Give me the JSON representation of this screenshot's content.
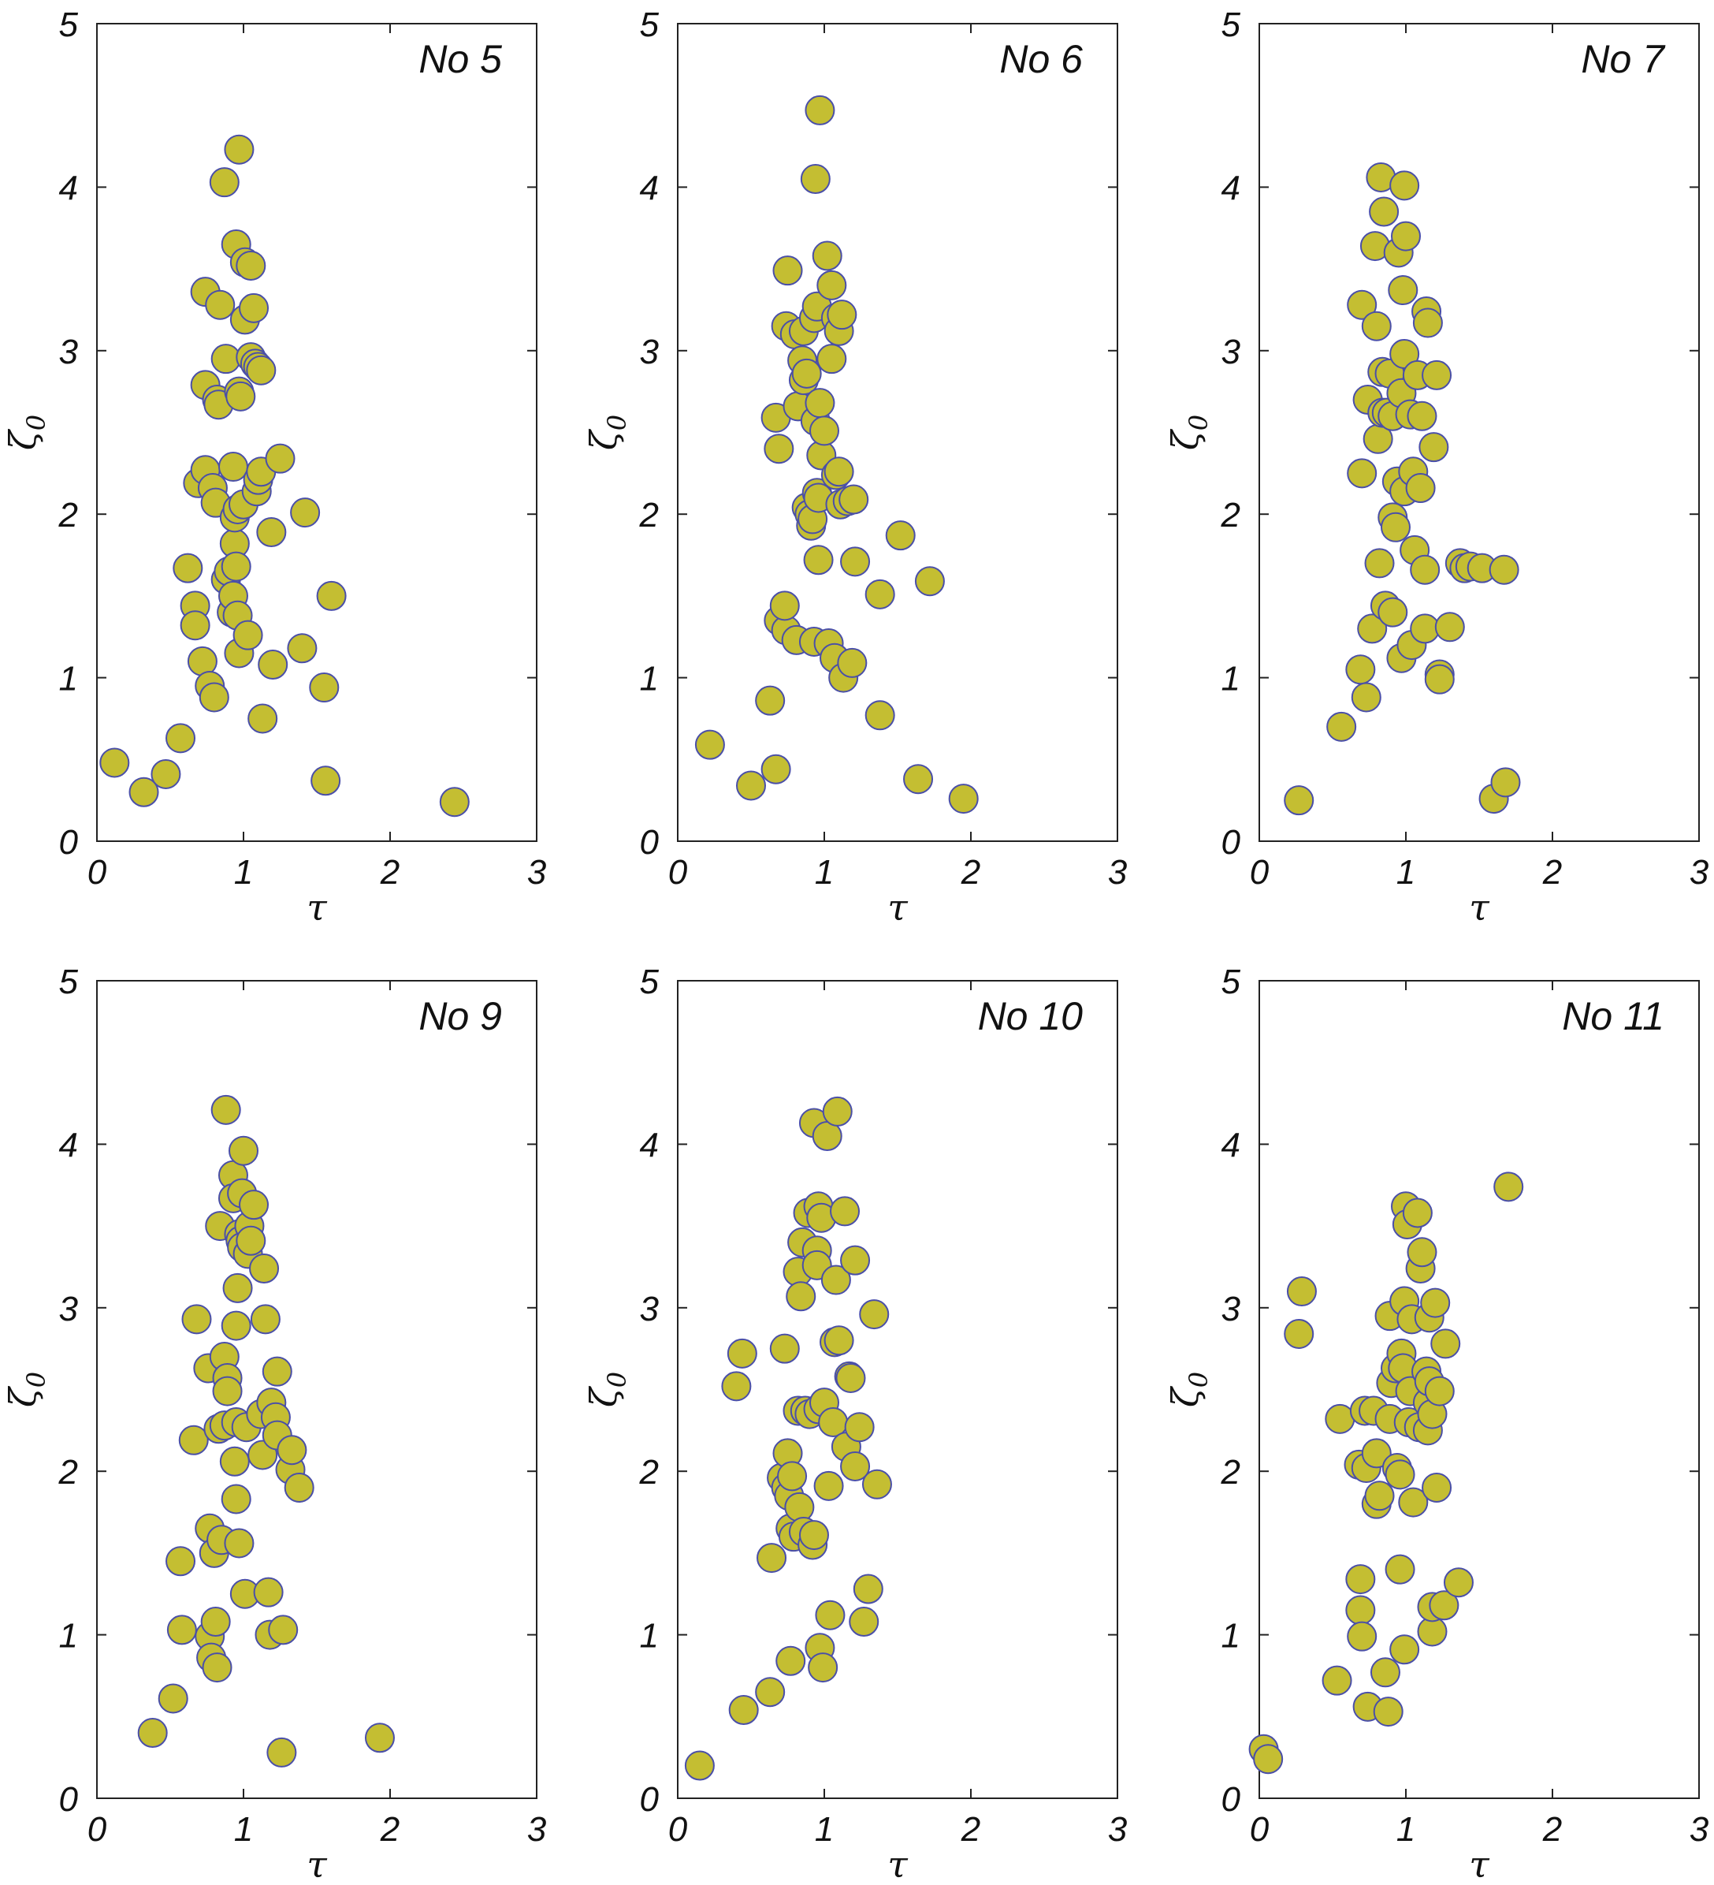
{
  "figure": {
    "marker_fill": "#c4be32",
    "marker_stroke": "#4a4fa8"
  },
  "chart_data": [
    {
      "type": "scatter",
      "title": "No 5",
      "xlabel": "τ",
      "ylabel": "ζ0",
      "xlim": [
        0,
        3
      ],
      "ylim": [
        0,
        5
      ],
      "xticks": [
        "0",
        "1",
        "2",
        "3"
      ],
      "yticks": [
        "0",
        "1",
        "2",
        "3",
        "4",
        "5"
      ],
      "grid": false,
      "points": [
        [
          0.12,
          0.48
        ],
        [
          0.32,
          0.3
        ],
        [
          0.47,
          0.41
        ],
        [
          0.57,
          0.63
        ],
        [
          0.62,
          1.67
        ],
        [
          0.67,
          1.44
        ],
        [
          0.67,
          1.32
        ],
        [
          0.72,
          1.1
        ],
        [
          0.77,
          0.95
        ],
        [
          0.8,
          0.88
        ],
        [
          0.69,
          2.19
        ],
        [
          0.74,
          2.27
        ],
        [
          0.79,
          2.16
        ],
        [
          0.81,
          2.07
        ],
        [
          0.74,
          2.79
        ],
        [
          0.74,
          3.36
        ],
        [
          0.82,
          2.7
        ],
        [
          0.83,
          2.67
        ],
        [
          0.84,
          3.28
        ],
        [
          0.87,
          4.03
        ],
        [
          0.88,
          2.95
        ],
        [
          0.88,
          1.6
        ],
        [
          0.9,
          1.65
        ],
        [
          0.92,
          1.4
        ],
        [
          0.93,
          2.29
        ],
        [
          0.93,
          1.5
        ],
        [
          0.94,
          1.82
        ],
        [
          0.95,
          1.68
        ],
        [
          0.94,
          1.98
        ],
        [
          0.96,
          2.03
        ],
        [
          0.96,
          1.38
        ],
        [
          0.97,
          1.15
        ],
        [
          0.95,
          3.65
        ],
        [
          0.97,
          4.23
        ],
        [
          0.97,
          2.75
        ],
        [
          0.98,
          2.72
        ],
        [
          1.0,
          2.06
        ],
        [
          1.01,
          3.54
        ],
        [
          1.01,
          3.19
        ],
        [
          1.03,
          1.26
        ],
        [
          1.05,
          2.96
        ],
        [
          1.05,
          3.52
        ],
        [
          1.07,
          3.26
        ],
        [
          1.08,
          2.92
        ],
        [
          1.09,
          2.14
        ],
        [
          1.1,
          2.9
        ],
        [
          1.1,
          2.21
        ],
        [
          1.12,
          2.26
        ],
        [
          1.12,
          2.88
        ],
        [
          1.13,
          0.75
        ],
        [
          1.19,
          1.89
        ],
        [
          1.2,
          1.08
        ],
        [
          1.25,
          2.34
        ],
        [
          1.4,
          1.18
        ],
        [
          1.42,
          2.01
        ],
        [
          1.55,
          0.94
        ],
        [
          1.56,
          0.37
        ],
        [
          1.6,
          1.5
        ],
        [
          2.44,
          0.24
        ]
      ]
    },
    {
      "type": "scatter",
      "title": "No 6",
      "xlabel": "τ",
      "ylabel": "ζ0",
      "xlim": [
        0,
        3
      ],
      "ylim": [
        0,
        5
      ],
      "xticks": [
        "0",
        "1",
        "2",
        "3"
      ],
      "yticks": [
        "0",
        "1",
        "2",
        "3",
        "4",
        "5"
      ],
      "grid": false,
      "points": [
        [
          0.22,
          0.59
        ],
        [
          0.5,
          0.34
        ],
        [
          0.63,
          0.86
        ],
        [
          0.67,
          0.44
        ],
        [
          0.67,
          2.59
        ],
        [
          0.69,
          2.4
        ],
        [
          0.69,
          1.35
        ],
        [
          0.74,
          1.29
        ],
        [
          0.73,
          1.44
        ],
        [
          0.74,
          3.15
        ],
        [
          0.75,
          3.49
        ],
        [
          0.8,
          3.1
        ],
        [
          0.81,
          1.23
        ],
        [
          0.82,
          2.66
        ],
        [
          0.85,
          2.94
        ],
        [
          0.86,
          3.12
        ],
        [
          0.86,
          2.82
        ],
        [
          0.88,
          2.86
        ],
        [
          0.88,
          2.04
        ],
        [
          0.9,
          2.0
        ],
        [
          0.91,
          1.93
        ],
        [
          0.92,
          1.97
        ],
        [
          0.93,
          3.2
        ],
        [
          0.93,
          1.22
        ],
        [
          0.94,
          2.57
        ],
        [
          0.94,
          4.05
        ],
        [
          0.95,
          3.27
        ],
        [
          0.95,
          2.13
        ],
        [
          0.96,
          2.1
        ],
        [
          0.96,
          1.72
        ],
        [
          0.97,
          4.47
        ],
        [
          0.97,
          2.68
        ],
        [
          0.98,
          2.36
        ],
        [
          1.0,
          2.51
        ],
        [
          1.02,
          3.58
        ],
        [
          1.03,
          1.21
        ],
        [
          1.05,
          3.4
        ],
        [
          1.05,
          2.95
        ],
        [
          1.07,
          1.12
        ],
        [
          1.08,
          2.24
        ],
        [
          1.08,
          3.2
        ],
        [
          1.1,
          3.12
        ],
        [
          1.1,
          2.26
        ],
        [
          1.11,
          2.06
        ],
        [
          1.12,
          3.22
        ],
        [
          1.13,
          1.0
        ],
        [
          1.16,
          2.08
        ],
        [
          1.19,
          1.09
        ],
        [
          1.2,
          2.09
        ],
        [
          1.21,
          1.71
        ],
        [
          1.38,
          0.77
        ],
        [
          1.38,
          1.51
        ],
        [
          1.52,
          1.87
        ],
        [
          1.64,
          0.38
        ],
        [
          1.72,
          1.59
        ],
        [
          1.95,
          0.26
        ]
      ]
    },
    {
      "type": "scatter",
      "title": "No 7",
      "xlabel": "τ",
      "ylabel": "ζ0",
      "xlim": [
        0,
        3
      ],
      "ylim": [
        0,
        5
      ],
      "xticks": [
        "0",
        "1",
        "2",
        "3"
      ],
      "yticks": [
        "0",
        "1",
        "2",
        "3",
        "4",
        "5"
      ],
      "grid": false,
      "points": [
        [
          0.27,
          0.25
        ],
        [
          0.56,
          0.7
        ],
        [
          0.69,
          1.05
        ],
        [
          0.7,
          2.25
        ],
        [
          0.7,
          3.28
        ],
        [
          0.73,
          0.88
        ],
        [
          0.74,
          2.7
        ],
        [
          0.77,
          1.3
        ],
        [
          0.79,
          3.64
        ],
        [
          0.8,
          3.15
        ],
        [
          0.81,
          2.46
        ],
        [
          0.82,
          1.7
        ],
        [
          0.83,
          4.06
        ],
        [
          0.84,
          2.62
        ],
        [
          0.84,
          2.87
        ],
        [
          0.85,
          3.85
        ],
        [
          0.86,
          1.44
        ],
        [
          0.87,
          2.62
        ],
        [
          0.89,
          2.86
        ],
        [
          0.91,
          1.4
        ],
        [
          0.91,
          2.6
        ],
        [
          0.91,
          1.98
        ],
        [
          0.93,
          1.92
        ],
        [
          0.94,
          2.2
        ],
        [
          0.95,
          3.6
        ],
        [
          0.97,
          2.74
        ],
        [
          0.97,
          1.12
        ],
        [
          0.98,
          3.37
        ],
        [
          0.99,
          2.98
        ],
        [
          0.99,
          2.14
        ],
        [
          0.99,
          4.01
        ],
        [
          1.0,
          3.7
        ],
        [
          1.03,
          2.61
        ],
        [
          1.04,
          1.2
        ],
        [
          1.05,
          2.26
        ],
        [
          1.06,
          1.78
        ],
        [
          1.08,
          2.85
        ],
        [
          1.1,
          2.16
        ],
        [
          1.11,
          2.6
        ],
        [
          1.13,
          1.3
        ],
        [
          1.13,
          1.66
        ],
        [
          1.14,
          3.24
        ],
        [
          1.15,
          3.17
        ],
        [
          1.19,
          2.41
        ],
        [
          1.21,
          2.85
        ],
        [
          1.23,
          1.02
        ],
        [
          1.23,
          0.99
        ],
        [
          1.3,
          1.31
        ],
        [
          1.37,
          1.7
        ],
        [
          1.4,
          1.67
        ],
        [
          1.44,
          1.68
        ],
        [
          1.52,
          1.67
        ],
        [
          1.6,
          0.26
        ],
        [
          1.67,
          1.66
        ],
        [
          1.68,
          0.36
        ]
      ]
    },
    {
      "type": "scatter",
      "title": "No 9",
      "xlabel": "τ",
      "ylabel": "ζ0",
      "xlim": [
        0,
        3
      ],
      "ylim": [
        0,
        5
      ],
      "xticks": [
        "0",
        "1",
        "2",
        "3"
      ],
      "yticks": [
        "0",
        "1",
        "2",
        "3",
        "4",
        "5"
      ],
      "grid": false,
      "points": [
        [
          0.38,
          0.4
        ],
        [
          0.52,
          0.61
        ],
        [
          0.57,
          1.45
        ],
        [
          0.58,
          1.03
        ],
        [
          0.66,
          2.19
        ],
        [
          0.68,
          2.93
        ],
        [
          0.76,
          2.63
        ],
        [
          0.77,
          1.65
        ],
        [
          0.77,
          0.99
        ],
        [
          0.78,
          0.86
        ],
        [
          0.8,
          1.5
        ],
        [
          0.81,
          1.08
        ],
        [
          0.82,
          0.8
        ],
        [
          0.83,
          2.26
        ],
        [
          0.84,
          3.5
        ],
        [
          0.85,
          1.58
        ],
        [
          0.87,
          2.28
        ],
        [
          0.87,
          2.7
        ],
        [
          0.88,
          4.21
        ],
        [
          0.89,
          2.57
        ],
        [
          0.89,
          2.49
        ],
        [
          0.93,
          3.81
        ],
        [
          0.93,
          3.67
        ],
        [
          0.94,
          2.06
        ],
        [
          0.95,
          2.3
        ],
        [
          0.95,
          2.89
        ],
        [
          0.95,
          1.83
        ],
        [
          0.96,
          3.12
        ],
        [
          0.97,
          1.56
        ],
        [
          0.97,
          3.45
        ],
        [
          0.98,
          3.41
        ],
        [
          0.99,
          3.37
        ],
        [
          0.99,
          3.7
        ],
        [
          1.0,
          3.96
        ],
        [
          1.01,
          1.25
        ],
        [
          1.02,
          2.27
        ],
        [
          1.03,
          3.33
        ],
        [
          1.04,
          3.5
        ],
        [
          1.05,
          3.41
        ],
        [
          1.07,
          3.63
        ],
        [
          1.12,
          2.35
        ],
        [
          1.13,
          2.1
        ],
        [
          1.14,
          3.24
        ],
        [
          1.15,
          2.93
        ],
        [
          1.17,
          1.26
        ],
        [
          1.18,
          1.0
        ],
        [
          1.19,
          2.42
        ],
        [
          1.22,
          2.33
        ],
        [
          1.23,
          2.61
        ],
        [
          1.23,
          2.22
        ],
        [
          1.26,
          0.28
        ],
        [
          1.27,
          1.03
        ],
        [
          1.32,
          2.01
        ],
        [
          1.33,
          2.13
        ],
        [
          1.38,
          1.9
        ],
        [
          1.93,
          0.37
        ]
      ]
    },
    {
      "type": "scatter",
      "title": "No 10",
      "xlabel": "τ",
      "ylabel": "ζ0",
      "xlim": [
        0,
        3
      ],
      "ylim": [
        0,
        5
      ],
      "xticks": [
        "0",
        "1",
        "2",
        "3"
      ],
      "yticks": [
        "0",
        "1",
        "2",
        "3",
        "4",
        "5"
      ],
      "grid": false,
      "points": [
        [
          0.15,
          0.2
        ],
        [
          0.4,
          2.52
        ],
        [
          0.44,
          2.72
        ],
        [
          0.45,
          0.54
        ],
        [
          0.63,
          0.65
        ],
        [
          0.64,
          1.47
        ],
        [
          0.71,
          1.96
        ],
        [
          0.73,
          2.75
        ],
        [
          0.74,
          1.9
        ],
        [
          0.75,
          2.11
        ],
        [
          0.76,
          1.85
        ],
        [
          0.77,
          0.84
        ],
        [
          0.77,
          1.65
        ],
        [
          0.78,
          1.97
        ],
        [
          0.79,
          1.6
        ],
        [
          0.82,
          3.22
        ],
        [
          0.82,
          2.37
        ],
        [
          0.83,
          1.78
        ],
        [
          0.84,
          3.07
        ],
        [
          0.85,
          3.4
        ],
        [
          0.86,
          1.63
        ],
        [
          0.87,
          2.37
        ],
        [
          0.89,
          3.58
        ],
        [
          0.9,
          2.35
        ],
        [
          0.92,
          1.55
        ],
        [
          0.93,
          1.61
        ],
        [
          0.93,
          4.13
        ],
        [
          0.95,
          3.35
        ],
        [
          0.95,
          3.26
        ],
        [
          0.96,
          3.62
        ],
        [
          0.96,
          2.38
        ],
        [
          0.97,
          0.92
        ],
        [
          0.98,
          3.55
        ],
        [
          0.99,
          0.8
        ],
        [
          1.0,
          2.42
        ],
        [
          1.02,
          4.05
        ],
        [
          1.03,
          1.91
        ],
        [
          1.04,
          1.12
        ],
        [
          1.06,
          2.3
        ],
        [
          1.07,
          2.79
        ],
        [
          1.08,
          3.17
        ],
        [
          1.09,
          4.2
        ],
        [
          1.1,
          2.8
        ],
        [
          1.14,
          3.59
        ],
        [
          1.15,
          2.15
        ],
        [
          1.17,
          2.58
        ],
        [
          1.18,
          2.57
        ],
        [
          1.21,
          3.29
        ],
        [
          1.21,
          2.03
        ],
        [
          1.24,
          2.27
        ],
        [
          1.27,
          1.08
        ],
        [
          1.3,
          1.28
        ],
        [
          1.34,
          2.96
        ],
        [
          1.36,
          1.92
        ]
      ]
    },
    {
      "type": "scatter",
      "title": "No 11",
      "xlabel": "τ",
      "ylabel": "ζ0",
      "xlim": [
        0,
        3
      ],
      "ylim": [
        0,
        5
      ],
      "xticks": [
        "0",
        "1",
        "2",
        "3"
      ],
      "yticks": [
        "0",
        "1",
        "2",
        "3",
        "4",
        "5"
      ],
      "grid": false,
      "points": [
        [
          0.03,
          0.3
        ],
        [
          0.06,
          0.24
        ],
        [
          0.27,
          2.84
        ],
        [
          0.29,
          3.1
        ],
        [
          0.53,
          0.72
        ],
        [
          0.55,
          2.32
        ],
        [
          0.68,
          2.04
        ],
        [
          0.69,
          1.34
        ],
        [
          0.69,
          1.15
        ],
        [
          0.7,
          0.99
        ],
        [
          0.72,
          2.37
        ],
        [
          0.73,
          2.02
        ],
        [
          0.74,
          0.56
        ],
        [
          0.78,
          2.37
        ],
        [
          0.8,
          2.11
        ],
        [
          0.8,
          1.8
        ],
        [
          0.82,
          1.85
        ],
        [
          0.86,
          0.77
        ],
        [
          0.88,
          0.53
        ],
        [
          0.89,
          2.95
        ],
        [
          0.89,
          2.32
        ],
        [
          0.9,
          2.54
        ],
        [
          0.93,
          2.63
        ],
        [
          0.94,
          2.02
        ],
        [
          0.96,
          1.4
        ],
        [
          0.96,
          1.98
        ],
        [
          0.97,
          2.72
        ],
        [
          0.98,
          2.63
        ],
        [
          0.99,
          3.04
        ],
        [
          0.99,
          0.91
        ],
        [
          1.0,
          3.62
        ],
        [
          1.01,
          3.51
        ],
        [
          1.02,
          2.3
        ],
        [
          1.03,
          2.49
        ],
        [
          1.04,
          2.93
        ],
        [
          1.05,
          1.81
        ],
        [
          1.08,
          3.58
        ],
        [
          1.09,
          2.27
        ],
        [
          1.1,
          3.24
        ],
        [
          1.11,
          3.34
        ],
        [
          1.14,
          2.61
        ],
        [
          1.15,
          2.42
        ],
        [
          1.15,
          2.25
        ],
        [
          1.16,
          2.94
        ],
        [
          1.16,
          2.55
        ],
        [
          1.18,
          2.35
        ],
        [
          1.18,
          1.02
        ],
        [
          1.18,
          1.17
        ],
        [
          1.2,
          3.03
        ],
        [
          1.21,
          1.9
        ],
        [
          1.23,
          2.49
        ],
        [
          1.26,
          1.18
        ],
        [
          1.27,
          2.78
        ],
        [
          1.36,
          1.32
        ],
        [
          1.7,
          3.74
        ]
      ]
    }
  ]
}
